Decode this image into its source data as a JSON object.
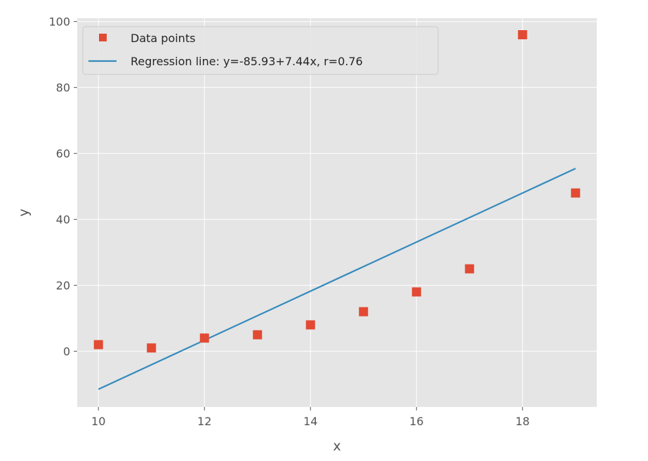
{
  "chart_data": {
    "type": "scatter",
    "title": "",
    "xlabel": "x",
    "ylabel": "y",
    "xlim": [
      9.6,
      19.4
    ],
    "ylim": [
      -16.9,
      101
    ],
    "xticks": [
      10,
      12,
      14,
      16,
      18
    ],
    "yticks": [
      0,
      20,
      40,
      60,
      80,
      100
    ],
    "grid": true,
    "legend_position": "upper left",
    "series": [
      {
        "name": "Data points",
        "kind": "scatter",
        "marker": "square",
        "color": "#E24A33",
        "x": [
          10,
          11,
          12,
          13,
          14,
          15,
          16,
          17,
          18,
          19
        ],
        "y": [
          2,
          1,
          4,
          5,
          8,
          12,
          18,
          25,
          96,
          48
        ]
      },
      {
        "name": "Regression line: y=-85.93+7.44x, r=0.76",
        "kind": "line",
        "color": "#348ABD",
        "intercept": -85.93,
        "slope": 7.44,
        "x": [
          10,
          19
        ]
      }
    ],
    "style": {
      "background": "#E5E5E5",
      "grid_color": "#FFFFFF"
    }
  }
}
